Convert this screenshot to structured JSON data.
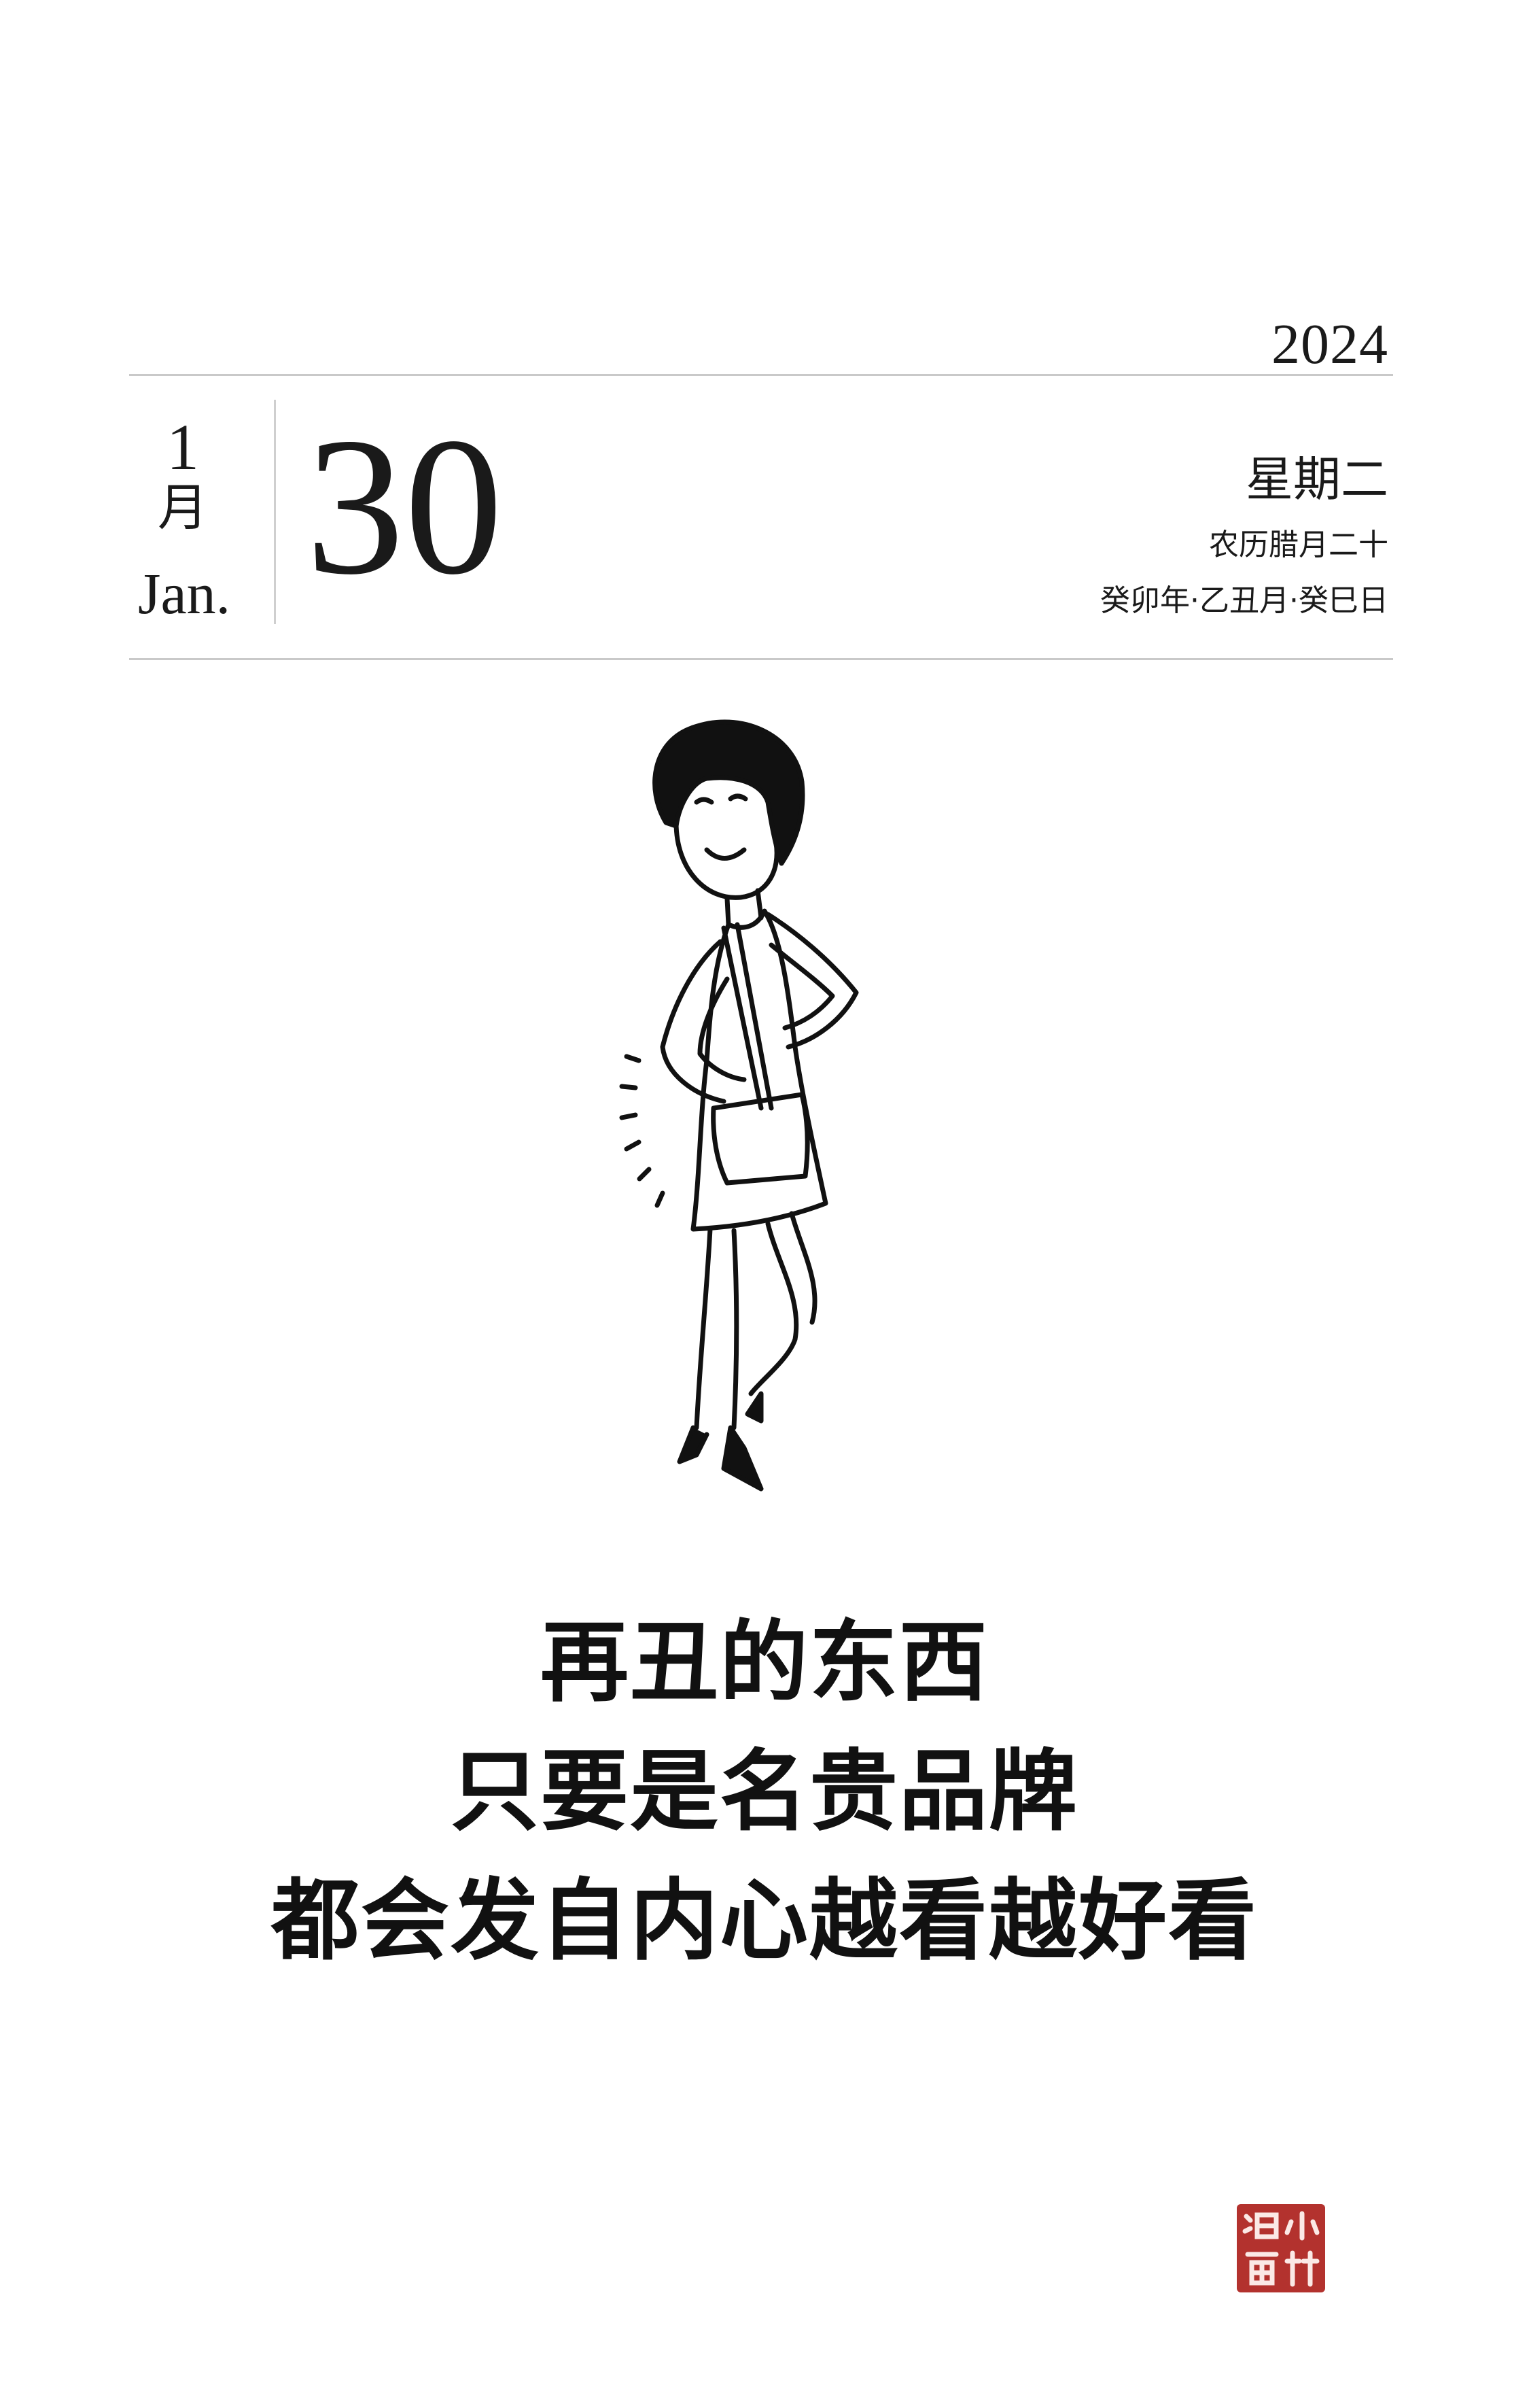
{
  "header": {
    "year": "2024",
    "month_number": "1",
    "month_cn": "月",
    "month_en": "Jan.",
    "day": "30",
    "weekday": "星期二",
    "lunar_date": "农历腊月二十",
    "ganzhi": "癸卯年·乙丑月·癸巳日"
  },
  "caption": {
    "line1": "再丑的东西",
    "line2": "只要是名贵品牌",
    "line3": "都会发自内心越看越好看"
  },
  "illustration": {
    "subject": "woman-with-handbag",
    "stroke_color": "#111111"
  },
  "seal": {
    "text": "小林漫画",
    "color": "#b3322e"
  }
}
